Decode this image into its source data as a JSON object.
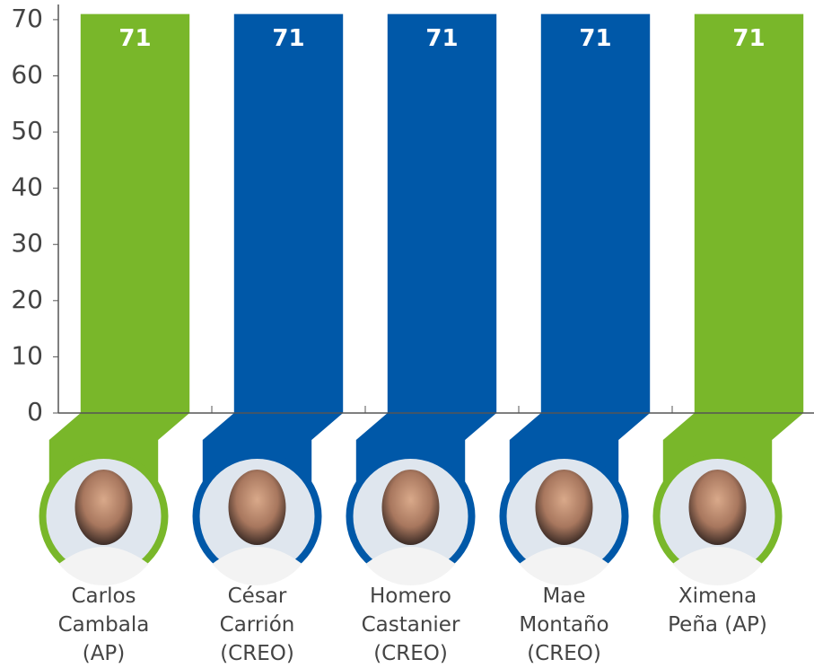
{
  "chart_data": {
    "type": "bar",
    "categories": [
      "Carlos Cambala (AP)",
      "César Carrión (CREO)",
      "Homero Castanier (CREO)",
      "Mae Montaño (CREO)",
      "Ximena Peña (AP)"
    ],
    "values": [
      71,
      71,
      71,
      71,
      71
    ],
    "colors": [
      "#79b72a",
      "#0058a8",
      "#0058a8",
      "#0058a8",
      "#79b72a"
    ],
    "ylim": [
      0,
      72.7
    ],
    "yticks": [
      0,
      10,
      20,
      30,
      40,
      50,
      60,
      70
    ]
  }
}
